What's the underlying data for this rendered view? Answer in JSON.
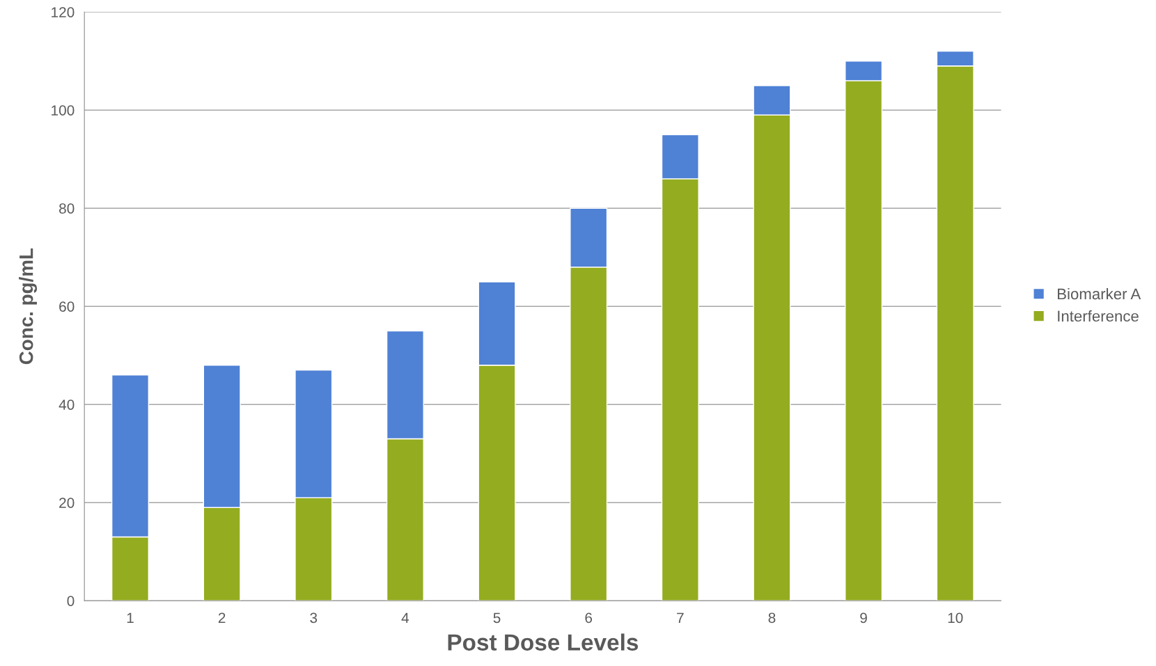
{
  "chart_data": {
    "type": "bar",
    "stacked": true,
    "xlabel": "Post Dose Levels",
    "ylabel": "Conc. pg/mL",
    "categories": [
      "1",
      "2",
      "3",
      "4",
      "5",
      "6",
      "7",
      "8",
      "9",
      "10"
    ],
    "series": [
      {
        "name": "Interference",
        "color": "#94ac1f",
        "values": [
          13,
          19,
          21,
          33,
          48,
          68,
          86,
          99,
          106,
          109
        ]
      },
      {
        "name": "Biomarker A",
        "color": "#4f81d5",
        "values": [
          33,
          29,
          26,
          22,
          17,
          12,
          9,
          6,
          4,
          3
        ]
      }
    ],
    "ylim": [
      0,
      120
    ],
    "yticks": [
      0,
      20,
      40,
      60,
      80,
      100,
      120
    ],
    "grid": "y",
    "legend": "right"
  }
}
